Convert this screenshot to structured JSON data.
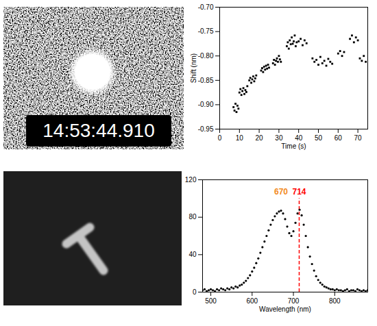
{
  "image_timestamp": "14:53:44.910",
  "chart_data": [
    {
      "type": "scatter",
      "xlabel": "Time (s)",
      "ylabel": "Shift (nm)",
      "x": [
        7,
        7.5,
        8,
        8.5,
        9,
        9.5,
        10,
        10.5,
        11,
        11.5,
        12,
        12.5,
        13,
        13.5,
        14,
        15,
        15.5,
        16,
        16.5,
        17,
        17.5,
        18,
        18.5,
        21,
        21.5,
        22,
        22.5,
        23,
        23.5,
        24,
        24.5,
        25,
        27,
        27.5,
        28,
        28.5,
        29,
        29.5,
        30,
        30.5,
        31,
        34,
        34.5,
        35,
        35.5,
        36,
        36.5,
        37,
        37.5,
        38,
        38.5,
        39,
        40,
        41,
        42,
        43,
        44,
        47,
        48,
        49,
        50,
        51,
        52,
        53,
        54,
        55,
        56,
        57,
        60,
        61,
        62,
        63,
        66,
        67,
        68,
        69,
        70,
        71,
        72,
        73,
        74
      ],
      "values": [
        -0.905,
        -0.912,
        -0.898,
        -0.915,
        -0.902,
        -0.908,
        -0.875,
        -0.868,
        -0.88,
        -0.872,
        -0.866,
        -0.878,
        -0.87,
        -0.874,
        -0.862,
        -0.85,
        -0.845,
        -0.855,
        -0.848,
        -0.842,
        -0.852,
        -0.846,
        -0.84,
        -0.83,
        -0.825,
        -0.833,
        -0.822,
        -0.828,
        -0.82,
        -0.826,
        -0.818,
        -0.824,
        -0.815,
        -0.808,
        -0.818,
        -0.81,
        -0.805,
        -0.812,
        -0.8,
        -0.807,
        -0.812,
        -0.78,
        -0.772,
        -0.785,
        -0.768,
        -0.776,
        -0.762,
        -0.775,
        -0.77,
        -0.758,
        -0.78,
        -0.772,
        -0.77,
        -0.765,
        -0.778,
        -0.768,
        -0.774,
        -0.805,
        -0.812,
        -0.808,
        -0.818,
        -0.802,
        -0.815,
        -0.81,
        -0.82,
        -0.806,
        -0.812,
        -0.816,
        -0.795,
        -0.79,
        -0.8,
        -0.792,
        -0.765,
        -0.758,
        -0.772,
        -0.762,
        -0.768,
        -0.805,
        -0.81,
        -0.8,
        -0.812
      ],
      "xlim": [
        0,
        75
      ],
      "xticks": [
        0,
        10,
        20,
        30,
        40,
        50,
        60,
        70
      ],
      "ylim": [
        -0.95,
        -0.7
      ],
      "yticks": [
        -0.95,
        {
          "value": -0.9,
          "label": "-0.90"
        },
        -0.85,
        {
          "value": -0.8,
          "label": "-0.80"
        },
        -0.75,
        {
          "value": -0.7,
          "label": "-0.70"
        }
      ],
      "color": "#000000",
      "marker": "square"
    },
    {
      "type": "scatter",
      "xlabel": "Wavelength (nm)",
      "x": [
        480,
        485,
        490,
        495,
        500,
        505,
        510,
        515,
        520,
        525,
        530,
        535,
        540,
        545,
        550,
        555,
        560,
        565,
        570,
        575,
        580,
        585,
        590,
        595,
        600,
        605,
        610,
        615,
        620,
        625,
        630,
        635,
        640,
        645,
        650,
        655,
        660,
        665,
        670,
        675,
        680,
        685,
        690,
        695,
        700,
        705,
        710,
        715,
        720,
        725,
        730,
        735,
        740,
        745,
        750,
        755,
        760,
        765,
        770,
        775,
        780,
        785,
        790,
        795,
        800,
        805,
        810,
        815,
        820,
        825,
        830,
        835,
        840,
        845,
        850,
        855,
        860,
        865,
        870,
        875,
        880
      ],
      "values": [
        2,
        3,
        1,
        2,
        3,
        2,
        1,
        3,
        2,
        4,
        3,
        2,
        4,
        3,
        5,
        4,
        6,
        5,
        7,
        8,
        10,
        12,
        15,
        18,
        22,
        26,
        31,
        36,
        42,
        48,
        54,
        60,
        66,
        72,
        77,
        81,
        84,
        86,
        87,
        84,
        78,
        70,
        63,
        60,
        65,
        74,
        84,
        88,
        82,
        72,
        60,
        48,
        38,
        30,
        23,
        17,
        13,
        10,
        8,
        6,
        5,
        4,
        3,
        3,
        2,
        3,
        2,
        2,
        1,
        2,
        3,
        1,
        2,
        2,
        1,
        3,
        2,
        1,
        2,
        1,
        2
      ],
      "xlim": [
        480,
        880
      ],
      "xticks": [
        500,
        600,
        700,
        800
      ],
      "ylim": [
        0,
        120
      ],
      "yticks": [
        0,
        40,
        80,
        120
      ],
      "color": "#000000",
      "marker": "circle",
      "annotations": [
        {
          "text": "670",
          "x": 670,
          "y": 100,
          "color": "#f28a1e"
        },
        {
          "text": "714",
          "x": 714,
          "y": 100,
          "color": "#ff0000"
        }
      ],
      "vlines": [
        {
          "x": 714,
          "color": "#ff0000",
          "line_style": "dashed"
        }
      ]
    }
  ]
}
